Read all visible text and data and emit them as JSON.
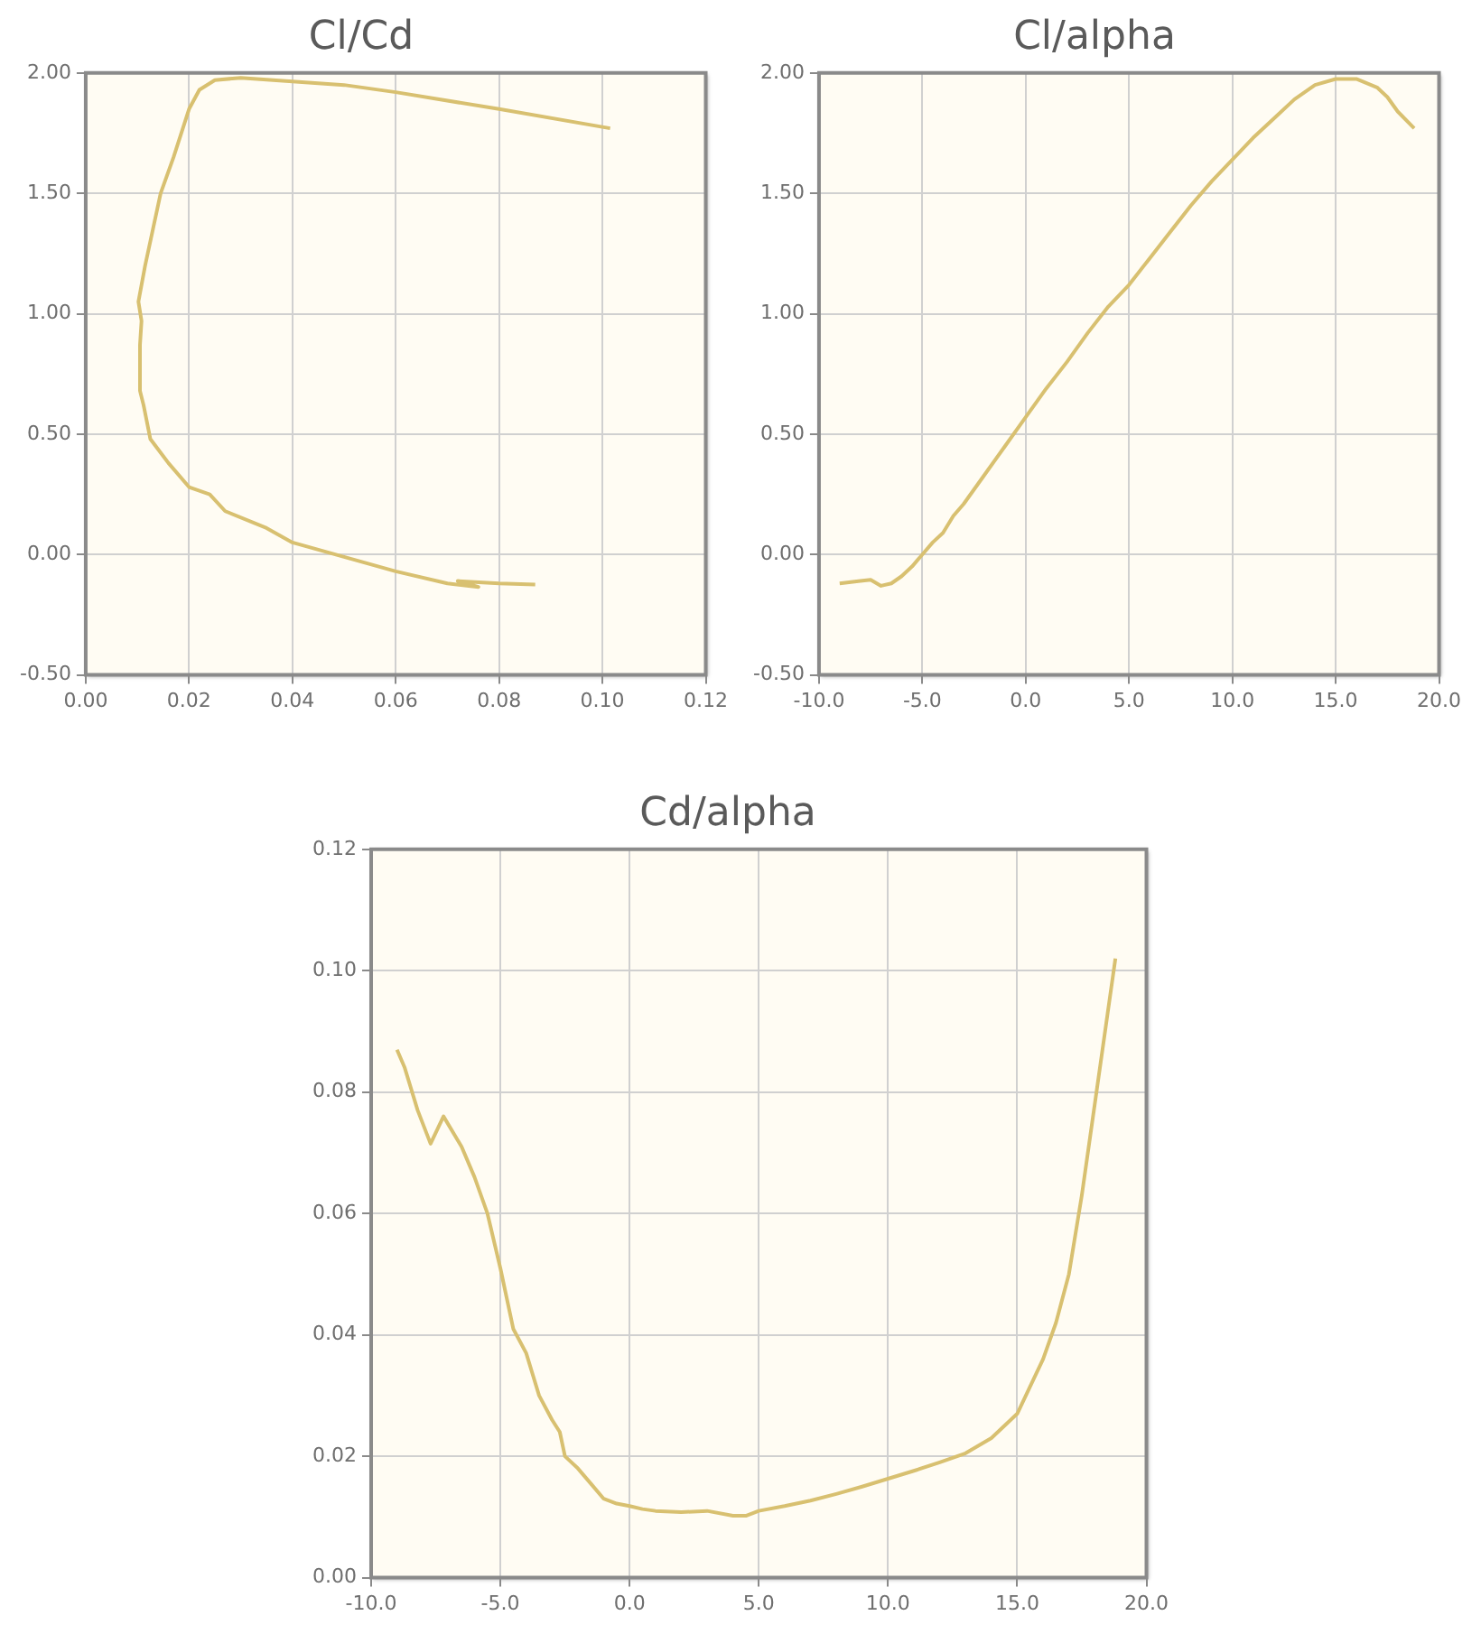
{
  "chart_data": [
    {
      "type": "line",
      "title": "Cl/Cd",
      "xlim": [
        0,
        0.12
      ],
      "xticks": [
        {
          "value": 0,
          "label": "0.00"
        },
        0.02,
        0.04,
        0.06,
        0.08,
        {
          "value": 0.1,
          "label": "0.10"
        },
        0.12
      ],
      "ylim": [
        -0.5,
        2
      ],
      "yticks": [
        {
          "value": -0.5,
          "label": "-0.50"
        },
        {
          "value": 0,
          "label": "0.00"
        },
        {
          "value": 0.5,
          "label": "0.50"
        },
        {
          "value": 1,
          "label": "1.00"
        },
        {
          "value": 1.5,
          "label": "1.50"
        },
        {
          "value": 2,
          "label": "2.00"
        }
      ],
      "grid": true,
      "legend": false,
      "marker": "none",
      "series": [
        {
          "color": "#d8c070",
          "x": [
            0.087,
            0.08,
            0.072,
            0.076,
            0.07,
            0.06,
            0.05,
            0.04,
            0.035,
            0.027,
            0.024,
            0.02,
            0.016,
            0.0125,
            0.0112,
            0.0105,
            0.0105,
            0.0108,
            0.0102,
            0.0115,
            0.013,
            0.0145,
            0.017,
            0.02,
            0.022,
            0.025,
            0.03,
            0.04,
            0.05,
            0.06,
            0.08,
            0.1015
          ],
          "values": [
            -0.125,
            -0.12,
            -0.11,
            -0.135,
            -0.12,
            -0.07,
            -0.01,
            0.05,
            0.11,
            0.18,
            0.25,
            0.28,
            0.38,
            0.48,
            0.62,
            0.68,
            0.87,
            0.97,
            1.05,
            1.2,
            1.35,
            1.5,
            1.65,
            1.85,
            1.93,
            1.97,
            1.98,
            1.965,
            1.95,
            1.92,
            1.85,
            1.77
          ]
        }
      ]
    },
    {
      "type": "line",
      "title": "Cl/alpha",
      "xlim": [
        -10,
        20
      ],
      "xticks": [
        {
          "value": -10,
          "label": "-10.0"
        },
        {
          "value": -5,
          "label": "-5.0"
        },
        {
          "value": 0,
          "label": "0.0"
        },
        {
          "value": 5,
          "label": "5.0"
        },
        {
          "value": 10,
          "label": "10.0"
        },
        {
          "value": 15,
          "label": "15.0"
        },
        {
          "value": 20,
          "label": "20.0"
        }
      ],
      "ylim": [
        -0.5,
        2
      ],
      "yticks": [
        {
          "value": -0.5,
          "label": "-0.50"
        },
        {
          "value": 0,
          "label": "0.00"
        },
        {
          "value": 0.5,
          "label": "0.50"
        },
        {
          "value": 1,
          "label": "1.00"
        },
        {
          "value": 1.5,
          "label": "1.50"
        },
        {
          "value": 2,
          "label": "2.00"
        }
      ],
      "grid": true,
      "legend": false,
      "marker": "none",
      "series": [
        {
          "color": "#d8c070",
          "x": [
            -9,
            -8,
            -7.5,
            -7,
            -6.5,
            -6,
            -5.5,
            -5,
            -4.5,
            -4,
            -3.5,
            -3,
            -2,
            -1,
            0,
            1,
            2,
            3,
            4,
            5,
            6,
            7,
            8,
            9,
            10,
            11,
            12,
            13,
            14,
            15,
            16,
            17,
            17.5,
            18,
            18.8
          ],
          "values": [
            -0.12,
            -0.11,
            -0.105,
            -0.13,
            -0.12,
            -0.09,
            -0.05,
            0.0,
            0.05,
            0.09,
            0.16,
            0.21,
            0.33,
            0.45,
            0.57,
            0.69,
            0.8,
            0.92,
            1.03,
            1.12,
            1.23,
            1.34,
            1.45,
            1.55,
            1.64,
            1.73,
            1.81,
            1.89,
            1.95,
            1.975,
            1.975,
            1.94,
            1.9,
            1.84,
            1.77
          ]
        }
      ]
    },
    {
      "type": "line",
      "title": "Cd/alpha",
      "xlim": [
        -10,
        20
      ],
      "xticks": [
        {
          "value": -10,
          "label": "-10.0"
        },
        {
          "value": -5,
          "label": "-5.0"
        },
        {
          "value": 0,
          "label": "0.0"
        },
        {
          "value": 5,
          "label": "5.0"
        },
        {
          "value": 10,
          "label": "10.0"
        },
        {
          "value": 15,
          "label": "15.0"
        },
        {
          "value": 20,
          "label": "20.0"
        }
      ],
      "ylim": [
        0,
        0.12
      ],
      "yticks": [
        {
          "value": 0,
          "label": "0.00"
        },
        0.02,
        0.04,
        0.06,
        0.08,
        {
          "value": 0.1,
          "label": "0.10"
        },
        0.12
      ],
      "grid": true,
      "legend": false,
      "marker": "none",
      "series": [
        {
          "color": "#d8c070",
          "x": [
            -9,
            -8.7,
            -8.2,
            -7.7,
            -7.2,
            -6.5,
            -6,
            -5.5,
            -5,
            -4.5,
            -4,
            -3.5,
            -3,
            -2.7,
            -2.5,
            -2,
            -1.5,
            -1,
            -0.5,
            0,
            0.5,
            1,
            2,
            3,
            4,
            4.5,
            5,
            6,
            7,
            8,
            9,
            10,
            11,
            12,
            13,
            14,
            15,
            16,
            16.5,
            17,
            17.5,
            18,
            18.5,
            18.8
          ],
          "values": [
            0.087,
            0.084,
            0.077,
            0.0715,
            0.076,
            0.071,
            0.066,
            0.06,
            0.051,
            0.041,
            0.037,
            0.03,
            0.026,
            0.024,
            0.02,
            0.018,
            0.0155,
            0.013,
            0.0122,
            0.0118,
            0.0113,
            0.011,
            0.0108,
            0.011,
            0.0102,
            0.0102,
            0.011,
            0.0118,
            0.0127,
            0.0138,
            0.015,
            0.0163,
            0.0176,
            0.019,
            0.0205,
            0.023,
            0.027,
            0.036,
            0.042,
            0.05,
            0.063,
            0.078,
            0.093,
            0.102
          ]
        }
      ]
    }
  ]
}
